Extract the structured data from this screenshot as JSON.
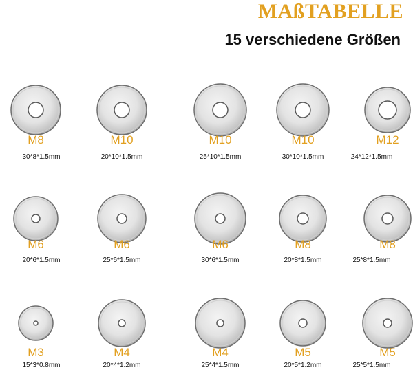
{
  "header": {
    "title": "MAßTABELLE",
    "subtitle": "15 verschiedene Größen"
  },
  "colors": {
    "accent": "#e2a020",
    "text": "#111111"
  },
  "washers": [
    {
      "size": "M8",
      "dims": "30*8*1.5mm"
    },
    {
      "size": "M10",
      "dims": "20*10*1.5mm"
    },
    {
      "size": "M10",
      "dims": "25*10*1.5mm"
    },
    {
      "size": "M10",
      "dims": "30*10*1.5mm"
    },
    {
      "size": "M12",
      "dims": "24*12*1.5mm"
    },
    {
      "size": "M6",
      "dims": "20*6*1.5mm"
    },
    {
      "size": "M6",
      "dims": "25*6*1.5mm"
    },
    {
      "size": "M6",
      "dims": "30*6*1.5mm"
    },
    {
      "size": "M8",
      "dims": "20*8*1.5mm"
    },
    {
      "size": "M8",
      "dims": "25*8*1.5mm"
    },
    {
      "size": "M3",
      "dims": "15*3*0.8mm"
    },
    {
      "size": "M4",
      "dims": "20*4*1.2mm"
    },
    {
      "size": "M4",
      "dims": "25*4*1.5mm"
    },
    {
      "size": "M5",
      "dims": "20*5*1.2mm"
    },
    {
      "size": "M5",
      "dims": "25*5*1.5mm"
    }
  ]
}
